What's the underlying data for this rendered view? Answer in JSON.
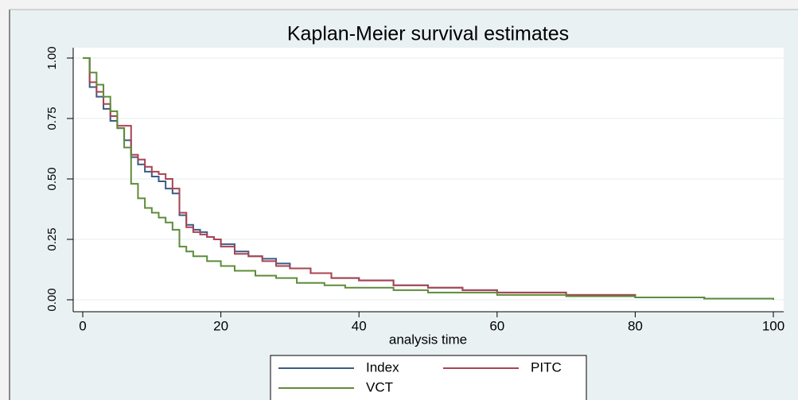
{
  "chart_data": {
    "type": "step",
    "title": "Kaplan-Meier survival estimates",
    "xlabel": "analysis time",
    "xlim": [
      0,
      100
    ],
    "xticks": [
      0,
      20,
      40,
      60,
      80,
      100
    ],
    "ylim": [
      0,
      1
    ],
    "yticks": [
      {
        "value": 0,
        "label": "0.00"
      },
      {
        "value": 0.25,
        "label": "0.25"
      },
      {
        "value": 0.5,
        "label": "0.50"
      },
      {
        "value": 0.75,
        "label": "0.75"
      },
      {
        "value": 1,
        "label": "1.00"
      }
    ],
    "grid": true,
    "legend": "bottom",
    "series": [
      {
        "name": "Index",
        "color": "#3c5b84",
        "x": [
          0,
          1,
          2,
          3,
          4,
          5,
          6,
          7,
          8,
          9,
          10,
          11,
          12,
          13,
          14,
          15,
          16,
          17,
          18,
          19,
          20,
          22,
          24,
          26,
          28,
          30,
          33,
          36,
          40,
          45,
          50,
          55,
          60,
          70,
          80,
          90,
          100
        ],
        "values": [
          1.0,
          0.88,
          0.84,
          0.79,
          0.74,
          0.71,
          0.66,
          0.59,
          0.56,
          0.53,
          0.51,
          0.49,
          0.46,
          0.44,
          0.35,
          0.31,
          0.29,
          0.28,
          0.26,
          0.25,
          0.23,
          0.2,
          0.18,
          0.17,
          0.15,
          0.13,
          0.11,
          0.09,
          0.08,
          0.06,
          0.05,
          0.04,
          0.03,
          0.02,
          0.01,
          0.005,
          0
        ]
      },
      {
        "name": "PITC",
        "color": "#a94450",
        "x": [
          0,
          1,
          2,
          3,
          4,
          5,
          7,
          8,
          9,
          10,
          11,
          12,
          13,
          14,
          15,
          16,
          17,
          18,
          19,
          20,
          22,
          24,
          26,
          28,
          30,
          33,
          36,
          40,
          45,
          50,
          55,
          60,
          70,
          80,
          90,
          100
        ],
        "values": [
          1.0,
          0.9,
          0.86,
          0.81,
          0.76,
          0.72,
          0.6,
          0.58,
          0.55,
          0.53,
          0.52,
          0.5,
          0.46,
          0.36,
          0.3,
          0.28,
          0.27,
          0.26,
          0.25,
          0.22,
          0.19,
          0.18,
          0.16,
          0.14,
          0.13,
          0.11,
          0.09,
          0.08,
          0.06,
          0.05,
          0.04,
          0.03,
          0.02,
          0.01,
          0.005,
          0
        ]
      },
      {
        "name": "VCT",
        "color": "#5d8c3a",
        "x": [
          0,
          1,
          2,
          3,
          4,
          5,
          6,
          7,
          8,
          9,
          10,
          11,
          12,
          13,
          14,
          15,
          16,
          18,
          20,
          22,
          25,
          28,
          31,
          35,
          38,
          45,
          50,
          60,
          70,
          80,
          90,
          100
        ],
        "values": [
          1.0,
          0.94,
          0.89,
          0.84,
          0.78,
          0.71,
          0.63,
          0.48,
          0.42,
          0.38,
          0.36,
          0.34,
          0.32,
          0.29,
          0.22,
          0.2,
          0.18,
          0.16,
          0.14,
          0.12,
          0.1,
          0.09,
          0.07,
          0.06,
          0.05,
          0.04,
          0.03,
          0.02,
          0.015,
          0.01,
          0.005,
          0
        ]
      }
    ]
  }
}
